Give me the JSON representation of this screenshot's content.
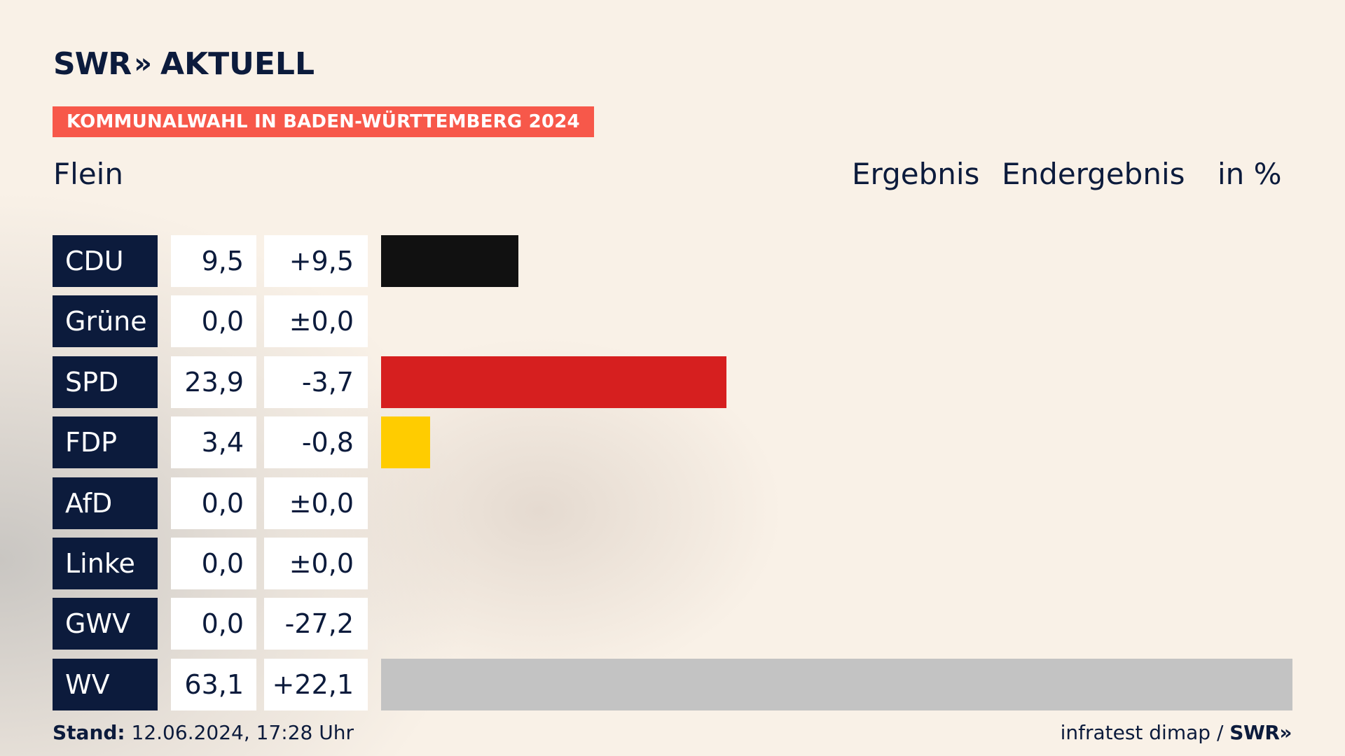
{
  "brand": {
    "logo_part1": "SWR",
    "logo_chevrons": "»",
    "logo_part2": "AKTUELL"
  },
  "banner": "KOMMUNALWAHL IN BADEN-WÜRTTEMBERG 2024",
  "place": "Flein",
  "header": {
    "result": "Ergebnis",
    "status": "Endergebnis",
    "unit": "in %"
  },
  "chart_data": {
    "type": "bar",
    "orientation": "horizontal",
    "categories": [
      "CDU",
      "Grüne",
      "SPD",
      "FDP",
      "AfD",
      "Linke",
      "GWV",
      "WV"
    ],
    "values": [
      9.5,
      0.0,
      23.9,
      3.4,
      0.0,
      0.0,
      0.0,
      63.1
    ],
    "values_label": [
      "9,5",
      "0,0",
      "23,9",
      "3,4",
      "0,0",
      "0,0",
      "0,0",
      "63,1"
    ],
    "diff_label": [
      "+9,5",
      "±0,0",
      "-3,7",
      "-0,8",
      "±0,0",
      "±0,0",
      "-27,2",
      "+22,1"
    ],
    "colors": [
      "#111111",
      "#4a9b3c",
      "#d61f1f",
      "#ffcc00",
      "#1a9fe0",
      "#b0156b",
      "#8a8a8a",
      "#c3c3c3"
    ],
    "xlim": [
      0,
      63.1
    ]
  },
  "footer": {
    "stand_label": "Stand:",
    "stand_value": "12.06.2024, 17:28 Uhr",
    "source": "infratest dimap /",
    "source_brand": "SWR»"
  }
}
